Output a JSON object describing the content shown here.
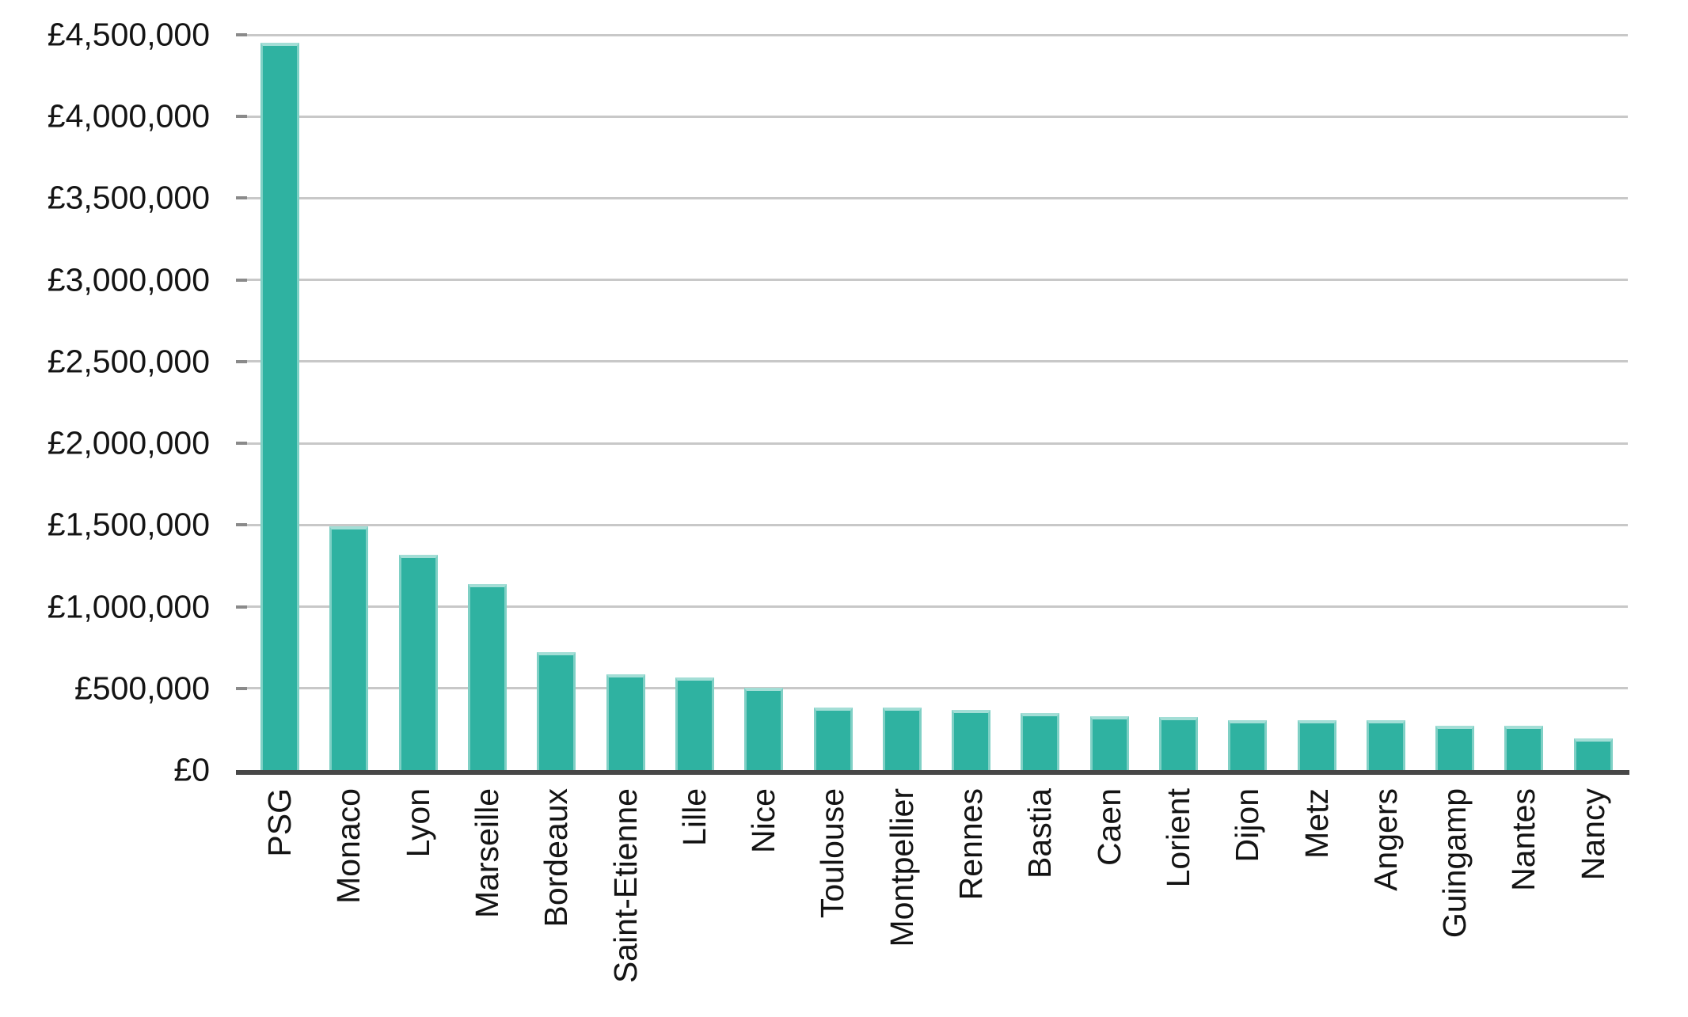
{
  "chart_data": {
    "type": "bar",
    "title": "",
    "xlabel": "",
    "ylabel": "",
    "grid": "horizontal",
    "legend_position": "none",
    "ylim": [
      0,
      4500000
    ],
    "ytick_step": 500000,
    "ytick_values": [
      0,
      500000,
      1000000,
      1500000,
      2000000,
      2500000,
      3000000,
      3500000,
      4000000,
      4500000
    ],
    "ytick_labels": [
      "£0",
      "£500,000",
      "£1,000,000",
      "£1,500,000",
      "£2,000,000",
      "£2,500,000",
      "£3,000,000",
      "£3,500,000",
      "£4,000,000",
      "£4,500,000"
    ],
    "categories": [
      "PSG",
      "Monaco",
      "Lyon",
      "Marseille",
      "Bordeaux",
      "Saint-Etienne",
      "Lille",
      "Nice",
      "Toulouse",
      "Montpellier",
      "Rennes",
      "Bastia",
      "Caen",
      "Lorient",
      "Dijon",
      "Metz",
      "Angers",
      "Guingamp",
      "Nantes",
      "Nancy"
    ],
    "values": [
      4450000,
      1490000,
      1320000,
      1140000,
      720000,
      585000,
      565000,
      505000,
      385000,
      385000,
      368000,
      348000,
      328000,
      325000,
      307000,
      306000,
      303000,
      273000,
      271000,
      195000
    ],
    "currency": "£",
    "colors": {
      "bar": "#2fb2a1",
      "bar_top_edge": "#a3ded6",
      "bar_side_edge": "#7fd0c5",
      "gridline": "#c8c8c8",
      "tick": "#8a8a8a",
      "axis": "#474747",
      "text": "#141414",
      "background": "#ffffff"
    }
  }
}
